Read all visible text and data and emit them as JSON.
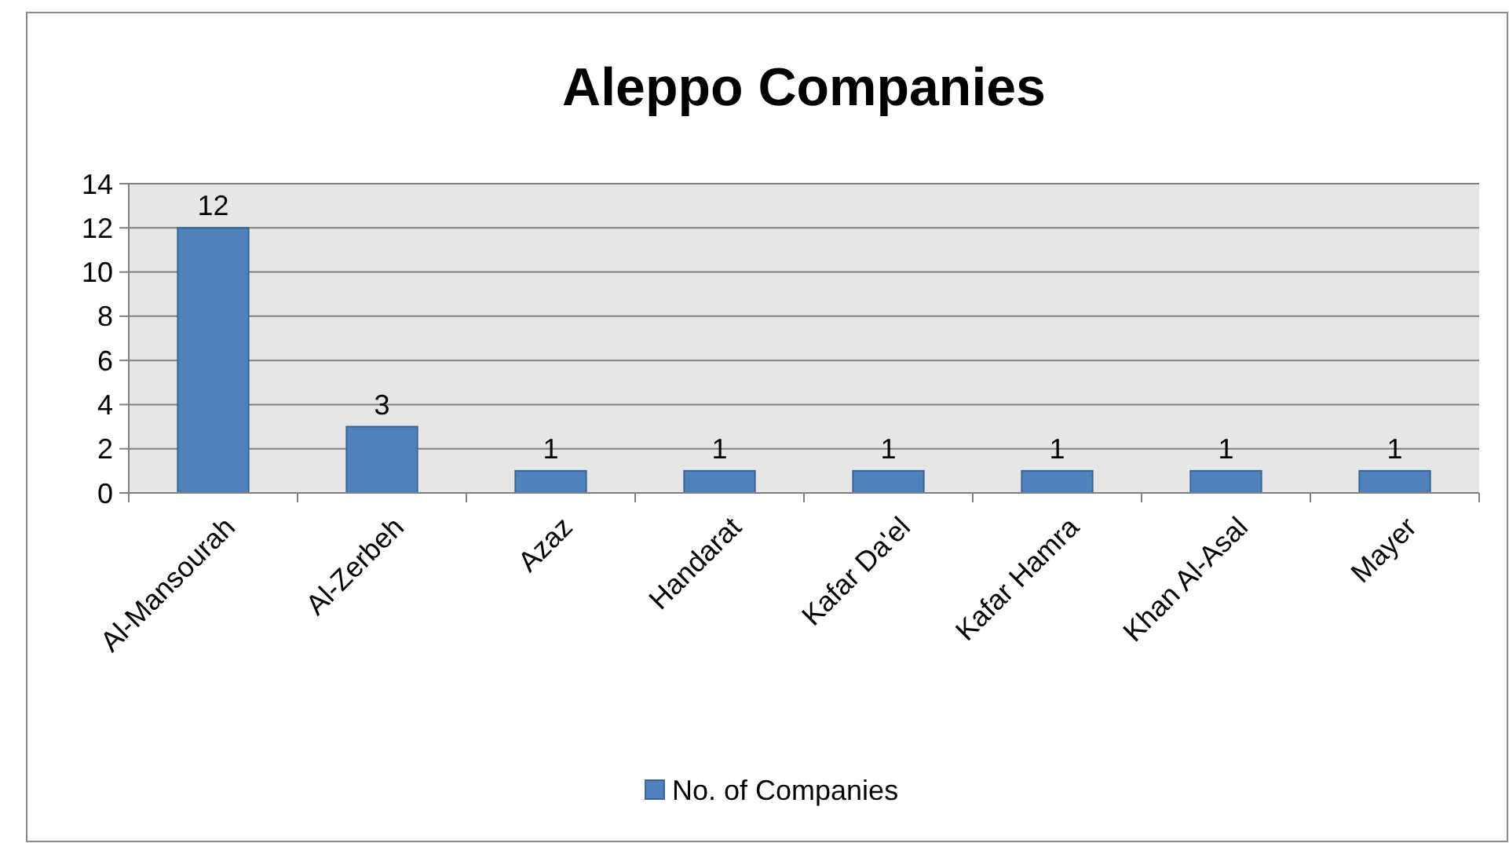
{
  "chart_data": {
    "type": "bar",
    "title": "Aleppo Companies",
    "categories": [
      "Al-Mansourah",
      "Al-Zerbeh",
      "Azaz",
      "Handarat",
      "Kafar Da'el",
      "Kafar Hamra",
      "Khan Al-Asal",
      "Mayer"
    ],
    "series": [
      {
        "name": "No. of Companies",
        "color": "#4f81bd",
        "values": [
          12,
          3,
          1,
          1,
          1,
          1,
          1,
          1
        ]
      }
    ],
    "ylim": [
      0,
      14
    ],
    "yticks": [
      0,
      2,
      4,
      6,
      8,
      10,
      12,
      14
    ],
    "grid": "y",
    "data_labels": true,
    "legend": "bottom"
  }
}
